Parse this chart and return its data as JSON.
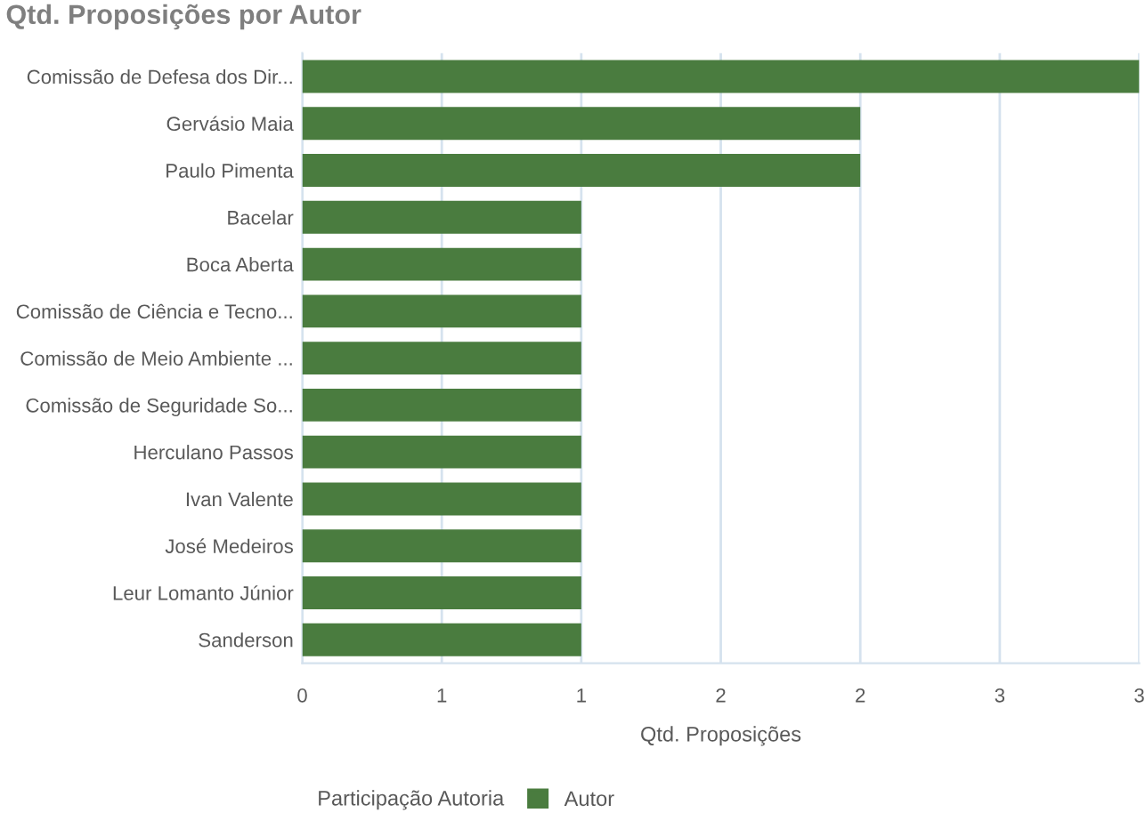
{
  "chart_data": {
    "type": "bar",
    "orientation": "horizontal",
    "title": "Qtd. Proposições por Autor",
    "xlabel": "Qtd. Proposições",
    "legend_title": "Participação Autoria",
    "categories": [
      "Comissão de Defesa dos Dir...",
      "Gervásio Maia",
      "Paulo Pimenta",
      "Bacelar",
      "Boca Aberta",
      "Comissão de Ciência e Tecno...",
      "Comissão de Meio Ambiente ...",
      "Comissão de Seguridade So...",
      "Herculano Passos",
      "Ivan Valente",
      "José Medeiros",
      "Leur Lomanto Júnior",
      "Sanderson"
    ],
    "series": [
      {
        "name": "Autor",
        "color": "#4a7c3f",
        "values": [
          3,
          2,
          2,
          1,
          1,
          1,
          1,
          1,
          1,
          1,
          1,
          1,
          1
        ]
      }
    ],
    "xlim": [
      0,
      3
    ],
    "xticks": [
      0,
      {
        "value": 0.5,
        "label": "1"
      },
      1,
      {
        "value": 1.5,
        "label": "2"
      },
      2,
      {
        "value": 2.5,
        "label": "3"
      },
      3
    ],
    "grid": "x",
    "legend": "bottom left"
  }
}
